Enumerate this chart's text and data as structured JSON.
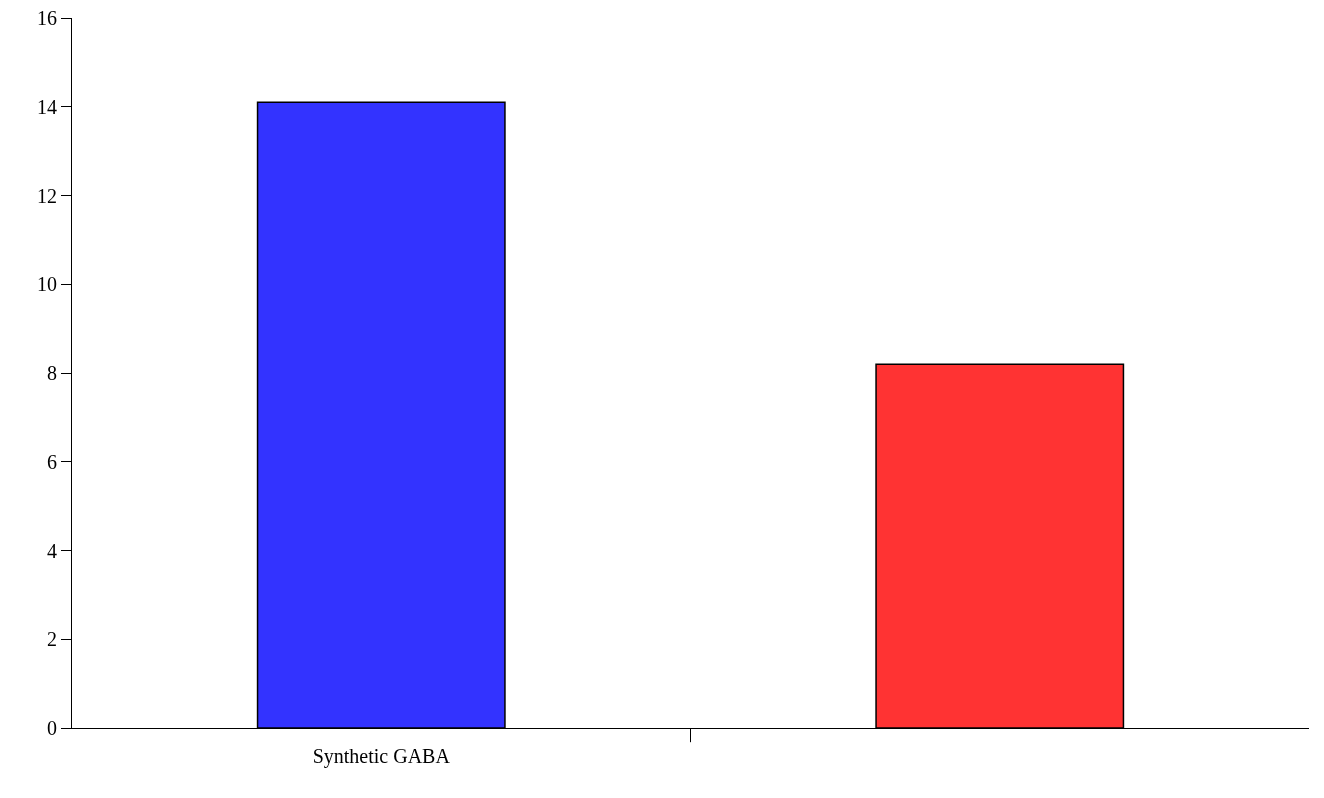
{
  "chart_data": {
    "type": "bar",
    "categories": [
      "Synthetic GABA",
      null
    ],
    "values": [
      14.1,
      8.2
    ],
    "colors": [
      "#3333ff",
      "#ff3333"
    ],
    "ylim": [
      0,
      16
    ],
    "yticks": [
      0,
      2,
      4,
      6,
      8,
      10,
      12,
      14,
      16
    ],
    "grid": false
  }
}
